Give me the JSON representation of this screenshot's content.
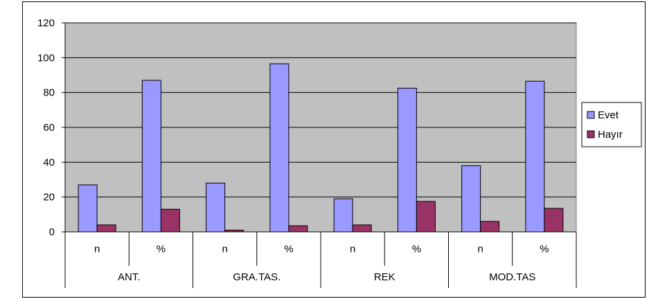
{
  "chart_data": {
    "type": "bar",
    "title": "",
    "xlabel": "",
    "ylabel": "",
    "ylim": [
      0,
      120
    ],
    "yticks": [
      0,
      20,
      40,
      60,
      80,
      100,
      120
    ],
    "grid": true,
    "legend_position": "right",
    "groups": [
      "ANT.",
      "GRA.TAS.",
      "REK",
      "MOD.TAS"
    ],
    "subcategories": [
      "n",
      "%"
    ],
    "categories": [
      "n",
      "%",
      "n",
      "%",
      "n",
      "%",
      "n",
      "%"
    ],
    "series": [
      {
        "name": "Evet",
        "color": "#9999ff",
        "values": [
          27,
          87,
          28,
          96.5,
          19,
          82.5,
          38,
          86.5
        ]
      },
      {
        "name": "Hayır",
        "color": "#993366",
        "values": [
          4,
          13,
          1,
          3.5,
          4,
          17.5,
          6,
          13.5
        ]
      }
    ],
    "plot_background": "#c0c0c0"
  }
}
